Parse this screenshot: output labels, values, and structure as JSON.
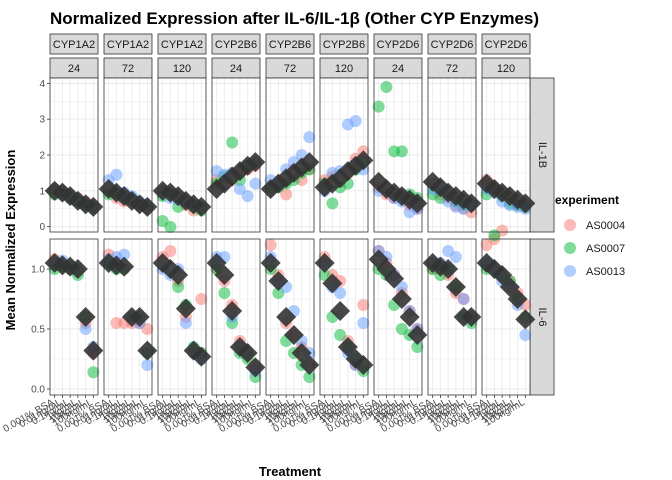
{
  "chart_data": {
    "type": "scatter",
    "title": "Normalized Expression after IL-6/IL-1β (Other CYP Enzymes)",
    "xlabel": "Treatment",
    "ylabel": "Mean Normalized Expression",
    "legend": {
      "title": "experiment",
      "position": "right",
      "entries": [
        {
          "name": "AS0004",
          "color": "#F8766D"
        },
        {
          "name": "AS0007",
          "color": "#00BA38"
        },
        {
          "name": "AS0013",
          "color": "#619CFF"
        }
      ]
    },
    "mean_marker_color": "#333333",
    "column_facets": [
      {
        "gene": "CYP1A2",
        "time": "24"
      },
      {
        "gene": "CYP1A2",
        "time": "72"
      },
      {
        "gene": "CYP1A2",
        "time": "120"
      },
      {
        "gene": "CYP2B6",
        "time": "24"
      },
      {
        "gene": "CYP2B6",
        "time": "72"
      },
      {
        "gene": "CYP2B6",
        "time": "120"
      },
      {
        "gene": "CYP2D6",
        "time": "24"
      },
      {
        "gene": "CYP2D6",
        "time": "72"
      },
      {
        "gene": "CYP2D6",
        "time": "120"
      }
    ],
    "row_facets": [
      "IL-1B",
      "IL-6"
    ],
    "x_tick_labels": [
      "0.001% BSA",
      "0.01ng/mL",
      "0.1ng/mL",
      "1ng/mL",
      "10ng/mL",
      "100ng/mL"
    ],
    "y_ticks": [
      [
        0,
        1,
        2,
        3,
        4
      ],
      [
        0.0,
        0.5,
        1.0
      ]
    ],
    "ylim": [
      [
        -0.15,
        4.15
      ],
      [
        -0.05,
        1.25
      ]
    ],
    "grid": true,
    "panels": [
      {
        "col": 0,
        "row": 0,
        "mean": [
          1.0,
          0.95,
          0.85,
          0.72,
          0.62,
          0.55
        ],
        "pts": [
          [
            1.05,
            1.0,
            0.9,
            0.8,
            0.7,
            0.6
          ],
          [
            0.9,
            0.95,
            0.8,
            0.7,
            0.6,
            0.5
          ],
          [
            1.05,
            0.9,
            0.85,
            0.75,
            0.6,
            0.55
          ]
        ]
      },
      {
        "col": 1,
        "row": 0,
        "mean": [
          1.05,
          0.95,
          0.85,
          0.72,
          0.62,
          0.55
        ],
        "pts": [
          [
            1.0,
            0.8,
            0.7,
            0.75,
            0.6,
            0.5
          ],
          [
            0.9,
            0.9,
            0.8,
            0.8,
            0.6,
            0.55
          ],
          [
            1.3,
            1.45,
            0.95,
            0.85,
            0.7,
            0.6
          ]
        ]
      },
      {
        "col": 2,
        "row": 0,
        "mean": [
          1.0,
          0.95,
          0.85,
          0.72,
          0.62,
          0.55
        ],
        "pts": [
          [
            1.0,
            0.95,
            0.8,
            0.6,
            0.45,
            0.5
          ],
          [
            0.85,
            0.9,
            0.55,
            0.7,
            0.55,
            0.45
          ],
          [
            1.0,
            0.8,
            0.75,
            0.7,
            0.6,
            0.55
          ]
        ]
      },
      {
        "col": 3,
        "row": 0,
        "mean": [
          1.05,
          1.2,
          1.4,
          1.55,
          1.7,
          1.8
        ],
        "pts": [
          [
            1.3,
            1.2,
            1.3,
            1.5,
            1.6,
            1.7
          ],
          [
            1.2,
            1.4,
            2.35,
            1.3,
            1.7,
            1.8
          ],
          [
            1.55,
            1.45,
            1.5,
            1.05,
            0.85,
            1.2
          ]
        ]
      },
      {
        "col": 4,
        "row": 0,
        "mean": [
          1.05,
          1.2,
          1.35,
          1.5,
          1.65,
          1.8
        ],
        "pts": [
          [
            1.0,
            1.2,
            0.9,
            1.6,
            1.3,
            1.6
          ],
          [
            1.1,
            1.1,
            1.2,
            1.3,
            1.5,
            1.6
          ],
          [
            1.3,
            1.2,
            1.6,
            1.8,
            2.0,
            2.5
          ]
        ]
      },
      {
        "col": 5,
        "row": 0,
        "mean": [
          1.1,
          1.2,
          1.35,
          1.55,
          1.7,
          1.85
        ],
        "pts": [
          [
            1.3,
            1.4,
            1.25,
            1.5,
            1.9,
            2.1
          ],
          [
            1.2,
            0.65,
            1.1,
            1.2,
            1.6,
            1.8
          ],
          [
            1.0,
            1.5,
            1.55,
            2.85,
            2.95,
            1.6
          ]
        ]
      },
      {
        "col": 6,
        "row": 0,
        "mean": [
          1.25,
          1.05,
          0.95,
          0.85,
          0.75,
          0.65
        ],
        "pts": [
          [
            1.1,
            0.9,
            0.8,
            0.9,
            0.6,
            0.5
          ],
          [
            3.35,
            3.9,
            2.1,
            2.1,
            0.9,
            0.8
          ],
          [
            1.0,
            1.05,
            0.8,
            0.7,
            0.4,
            0.5
          ]
        ]
      },
      {
        "col": 7,
        "row": 0,
        "mean": [
          1.25,
          1.1,
          0.95,
          0.85,
          0.75,
          0.65
        ],
        "pts": [
          [
            1.2,
            0.9,
            0.8,
            0.6,
            0.5,
            0.4
          ],
          [
            0.9,
            0.8,
            0.9,
            0.7,
            0.6,
            0.6
          ],
          [
            1.05,
            1.0,
            0.7,
            0.55,
            0.5,
            0.6
          ]
        ]
      },
      {
        "col": 8,
        "row": 0,
        "mean": [
          1.2,
          1.05,
          0.95,
          0.85,
          0.75,
          0.65
        ],
        "pts": [
          [
            1.3,
            1.1,
            0.9,
            0.8,
            0.6,
            0.55
          ],
          [
            0.9,
            1.0,
            0.85,
            0.65,
            0.6,
            0.55
          ],
          [
            1.05,
            0.95,
            0.7,
            0.6,
            0.55,
            0.5
          ]
        ]
      },
      {
        "col": 0,
        "row": 1,
        "mean": [
          1.05,
          1.03,
          1.02,
          1.0,
          0.6,
          0.32
        ],
        "pts": [
          [
            1.08,
            1.05,
            1.0,
            0.98,
            0.55,
            0.3
          ],
          [
            1.0,
            1.02,
            1.0,
            0.95,
            0.6,
            0.14
          ],
          [
            1.05,
            1.07,
            1.03,
            1.0,
            0.5,
            0.35
          ]
        ]
      },
      {
        "col": 1,
        "row": 1,
        "mean": [
          1.05,
          1.03,
          1.02,
          0.6,
          0.6,
          0.32
        ],
        "pts": [
          [
            1.12,
            0.55,
            0.55,
            0.55,
            0.55,
            0.5
          ],
          [
            1.05,
            1.0,
            1.0,
            0.6,
            0.6,
            0.3
          ],
          [
            1.08,
            1.1,
            1.12,
            0.6,
            0.55,
            0.2
          ]
        ]
      },
      {
        "col": 2,
        "row": 1,
        "mean": [
          1.05,
          1.0,
          0.95,
          0.67,
          0.32,
          0.27
        ],
        "pts": [
          [
            1.1,
            1.15,
            0.9,
            0.6,
            0.3,
            0.75
          ],
          [
            1.4,
            1.35,
            0.85,
            0.7,
            0.35,
            0.3
          ],
          [
            1.0,
            0.95,
            1.0,
            0.55,
            0.3,
            0.25
          ]
        ]
      },
      {
        "col": 3,
        "row": 1,
        "mean": [
          1.05,
          0.95,
          0.65,
          0.35,
          0.3,
          0.18
        ],
        "pts": [
          [
            1.0,
            0.9,
            0.7,
            0.4,
            0.3,
            0.2
          ],
          [
            1.0,
            0.8,
            0.55,
            0.3,
            0.25,
            0.1
          ],
          [
            1.1,
            1.1,
            0.6,
            0.35,
            0.3,
            0.15
          ]
        ]
      },
      {
        "col": 4,
        "row": 1,
        "mean": [
          1.05,
          0.9,
          0.6,
          0.45,
          0.3,
          0.2
        ],
        "pts": [
          [
            1.2,
            0.95,
            0.55,
            0.45,
            0.35,
            0.2
          ],
          [
            1.0,
            0.8,
            0.4,
            0.3,
            0.2,
            0.1
          ],
          [
            1.1,
            0.9,
            0.85,
            0.65,
            0.4,
            0.3
          ]
        ]
      },
      {
        "col": 5,
        "row": 1,
        "mean": [
          1.05,
          0.88,
          0.65,
          0.35,
          0.25,
          0.2
        ],
        "pts": [
          [
            1.1,
            0.95,
            0.9,
            0.4,
            0.2,
            0.7
          ],
          [
            0.95,
            0.6,
            0.45,
            0.35,
            0.25,
            0.15
          ],
          [
            1.05,
            0.85,
            0.8,
            0.3,
            0.2,
            0.55
          ]
        ]
      },
      {
        "col": 6,
        "row": 1,
        "mean": [
          1.08,
          1.0,
          0.92,
          0.75,
          0.6,
          0.45
        ],
        "pts": [
          [
            1.15,
            1.05,
            0.95,
            0.8,
            0.65,
            0.5
          ],
          [
            1.0,
            0.95,
            0.7,
            0.5,
            0.45,
            0.35
          ],
          [
            1.15,
            1.1,
            0.95,
            0.85,
            0.65,
            0.5
          ]
        ]
      },
      {
        "col": 7,
        "row": 1,
        "mean": [
          1.05,
          1.02,
          1.0,
          0.85,
          0.6,
          0.6
        ],
        "pts": [
          [
            1.0,
            1.0,
            0.95,
            0.8,
            0.75,
            0.6
          ],
          [
            1.0,
            0.95,
            1.0,
            0.85,
            0.6,
            0.55
          ],
          [
            1.05,
            1.05,
            1.15,
            1.1,
            0.75,
            0.6
          ]
        ]
      },
      {
        "col": 8,
        "row": 1,
        "mean": [
          1.05,
          1.0,
          0.95,
          0.85,
          0.75,
          0.58
        ],
        "pts": [
          [
            1.2,
            1.25,
            1.32,
            0.9,
            0.8,
            0.7
          ],
          [
            1.0,
            1.28,
            0.95,
            0.9,
            0.75,
            0.6
          ],
          [
            1.05,
            1.0,
            0.9,
            0.85,
            0.7,
            0.45
          ]
        ]
      }
    ]
  }
}
